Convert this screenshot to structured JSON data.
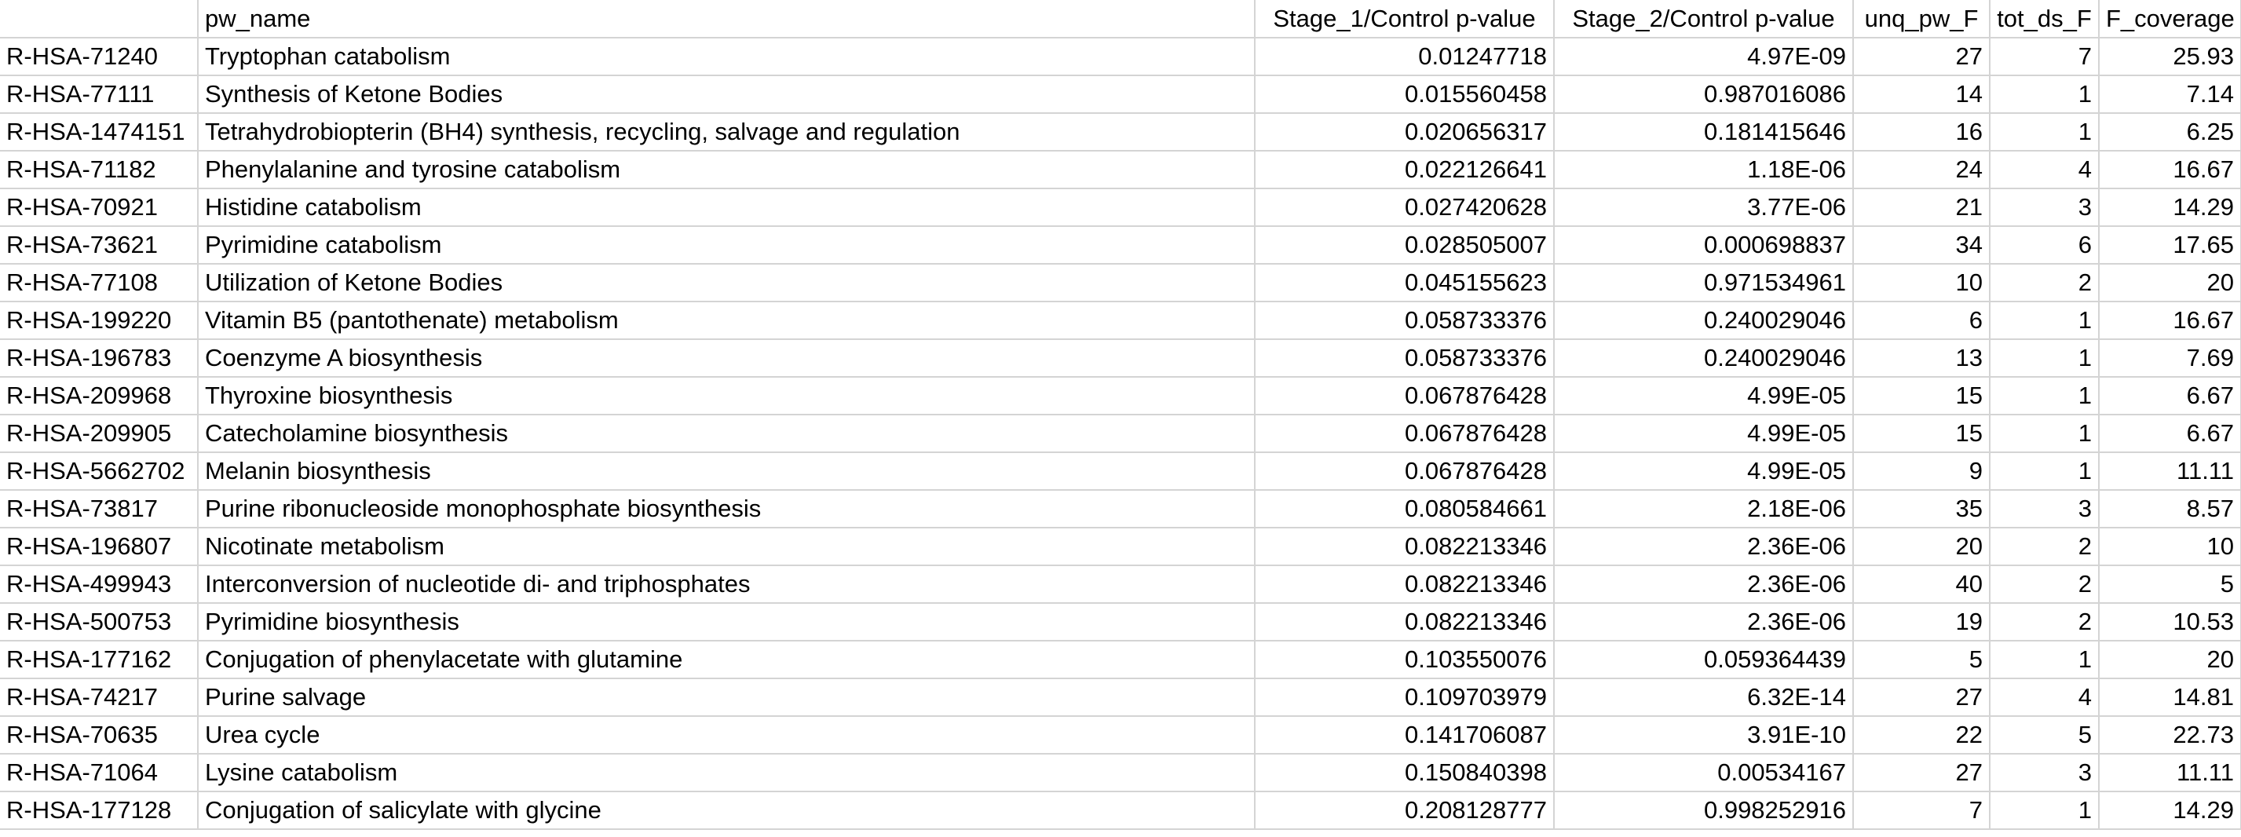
{
  "headers": [
    "",
    "pw_name",
    "Stage_1/Control p-value",
    "Stage_2/Control p-value",
    "unq_pw_F",
    "tot_ds_F",
    "F_coverage"
  ],
  "rows": [
    [
      "R-HSA-71240",
      "Tryptophan catabolism",
      "0.01247718",
      "4.97E-09",
      "27",
      "7",
      "25.93"
    ],
    [
      "R-HSA-77111",
      "Synthesis of Ketone Bodies",
      "0.015560458",
      "0.987016086",
      "14",
      "1",
      "7.14"
    ],
    [
      "R-HSA-1474151",
      "Tetrahydrobiopterin (BH4) synthesis, recycling, salvage and regulation",
      "0.020656317",
      "0.181415646",
      "16",
      "1",
      "6.25"
    ],
    [
      "R-HSA-71182",
      "Phenylalanine and tyrosine catabolism",
      "0.022126641",
      "1.18E-06",
      "24",
      "4",
      "16.67"
    ],
    [
      "R-HSA-70921",
      "Histidine catabolism",
      "0.027420628",
      "3.77E-06",
      "21",
      "3",
      "14.29"
    ],
    [
      "R-HSA-73621",
      "Pyrimidine catabolism",
      "0.028505007",
      "0.000698837",
      "34",
      "6",
      "17.65"
    ],
    [
      "R-HSA-77108",
      "Utilization of Ketone Bodies",
      "0.045155623",
      "0.971534961",
      "10",
      "2",
      "20"
    ],
    [
      "R-HSA-199220",
      "Vitamin B5 (pantothenate) metabolism",
      "0.058733376",
      "0.240029046",
      "6",
      "1",
      "16.67"
    ],
    [
      "R-HSA-196783",
      "Coenzyme A biosynthesis",
      "0.058733376",
      "0.240029046",
      "13",
      "1",
      "7.69"
    ],
    [
      "R-HSA-209968",
      "Thyroxine biosynthesis",
      "0.067876428",
      "4.99E-05",
      "15",
      "1",
      "6.67"
    ],
    [
      "R-HSA-209905",
      "Catecholamine biosynthesis",
      "0.067876428",
      "4.99E-05",
      "15",
      "1",
      "6.67"
    ],
    [
      "R-HSA-5662702",
      "Melanin biosynthesis",
      "0.067876428",
      "4.99E-05",
      "9",
      "1",
      "11.11"
    ],
    [
      "R-HSA-73817",
      "Purine ribonucleoside monophosphate biosynthesis",
      "0.080584661",
      "2.18E-06",
      "35",
      "3",
      "8.57"
    ],
    [
      "R-HSA-196807",
      "Nicotinate metabolism",
      "0.082213346",
      "2.36E-06",
      "20",
      "2",
      "10"
    ],
    [
      "R-HSA-499943",
      "Interconversion of nucleotide di- and triphosphates",
      "0.082213346",
      "2.36E-06",
      "40",
      "2",
      "5"
    ],
    [
      "R-HSA-500753",
      "Pyrimidine biosynthesis",
      "0.082213346",
      "2.36E-06",
      "19",
      "2",
      "10.53"
    ],
    [
      "R-HSA-177162",
      "Conjugation of phenylacetate with glutamine",
      "0.103550076",
      "0.059364439",
      "5",
      "1",
      "20"
    ],
    [
      "R-HSA-74217",
      "Purine salvage",
      "0.109703979",
      "6.32E-14",
      "27",
      "4",
      "14.81"
    ],
    [
      "R-HSA-70635",
      "Urea cycle",
      "0.141706087",
      "3.91E-10",
      "22",
      "5",
      "22.73"
    ],
    [
      "R-HSA-71064",
      "Lysine catabolism",
      "0.150840398",
      "0.00534167",
      "27",
      "3",
      "11.11"
    ],
    [
      "R-HSA-177128",
      "Conjugation of salicylate with glycine",
      "0.208128777",
      "0.998252916",
      "7",
      "1",
      "14.29"
    ]
  ]
}
